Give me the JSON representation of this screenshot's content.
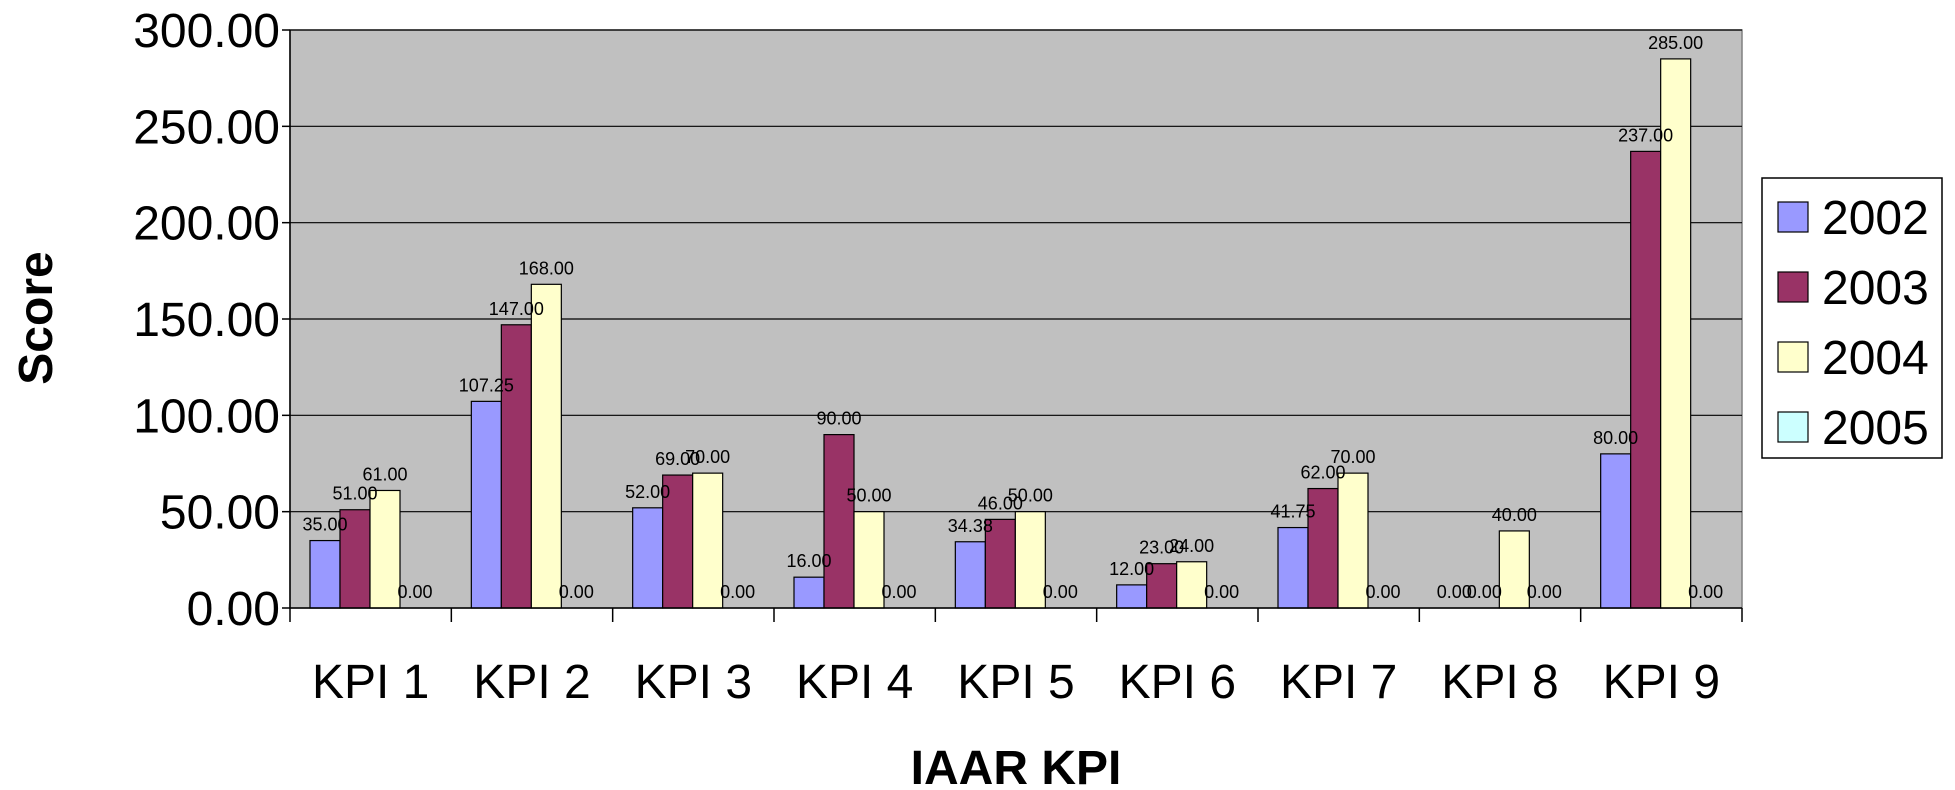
{
  "chart_data": {
    "type": "bar",
    "title": "",
    "xlabel": "IAAR KPI",
    "ylabel": "Score",
    "ylim": [
      0,
      300
    ],
    "yticks": [
      "0.00",
      "50.00",
      "100.00",
      "150.00",
      "200.00",
      "250.00",
      "300.00"
    ],
    "categories": [
      "KPI 1",
      "KPI 2",
      "KPI 3",
      "KPI 4",
      "KPI 5",
      "KPI 6",
      "KPI 7",
      "KPI 8",
      "KPI 9"
    ],
    "series": [
      {
        "name": "2002",
        "color": "#9999ff",
        "values": [
          35.0,
          107.25,
          52.0,
          16.0,
          34.38,
          12.0,
          41.75,
          0.0,
          80.0
        ],
        "labels": [
          "35.00",
          "107.25",
          "52.00",
          "16.00",
          "34.38",
          "12.00",
          "41.75",
          "0.00",
          "80.00"
        ]
      },
      {
        "name": "2003",
        "color": "#993366",
        "values": [
          51.0,
          147.0,
          69.0,
          90.0,
          46.0,
          23.0,
          62.0,
          0.0,
          237.0
        ],
        "labels": [
          "51.00",
          "147.00",
          "69.00",
          "90.00",
          "46.00",
          "23.00",
          "62.00",
          "0.00",
          "237.00"
        ]
      },
      {
        "name": "2004",
        "color": "#ffffcc",
        "values": [
          61.0,
          168.0,
          70.0,
          50.0,
          50.0,
          24.0,
          70.0,
          40.0,
          285.0
        ],
        "labels": [
          "61.00",
          "168.00",
          "70.00",
          "50.00",
          "50.00",
          "24.00",
          "70.00",
          "40.00",
          "285.00"
        ]
      },
      {
        "name": "2005",
        "color": "#ccffff",
        "values": [
          0.0,
          0.0,
          0.0,
          0.0,
          0.0,
          0.0,
          0.0,
          0.0,
          0.0
        ],
        "labels": [
          "0.00",
          "0.00",
          "0.00",
          "0.00",
          "0.00",
          "0.00",
          "0.00",
          "0.00",
          "0.00"
        ]
      }
    ],
    "grid": true,
    "plot_background": "#c0c0c0",
    "legend": {
      "position": "right",
      "entries": [
        "2002",
        "2003",
        "2004",
        "2005"
      ]
    }
  }
}
